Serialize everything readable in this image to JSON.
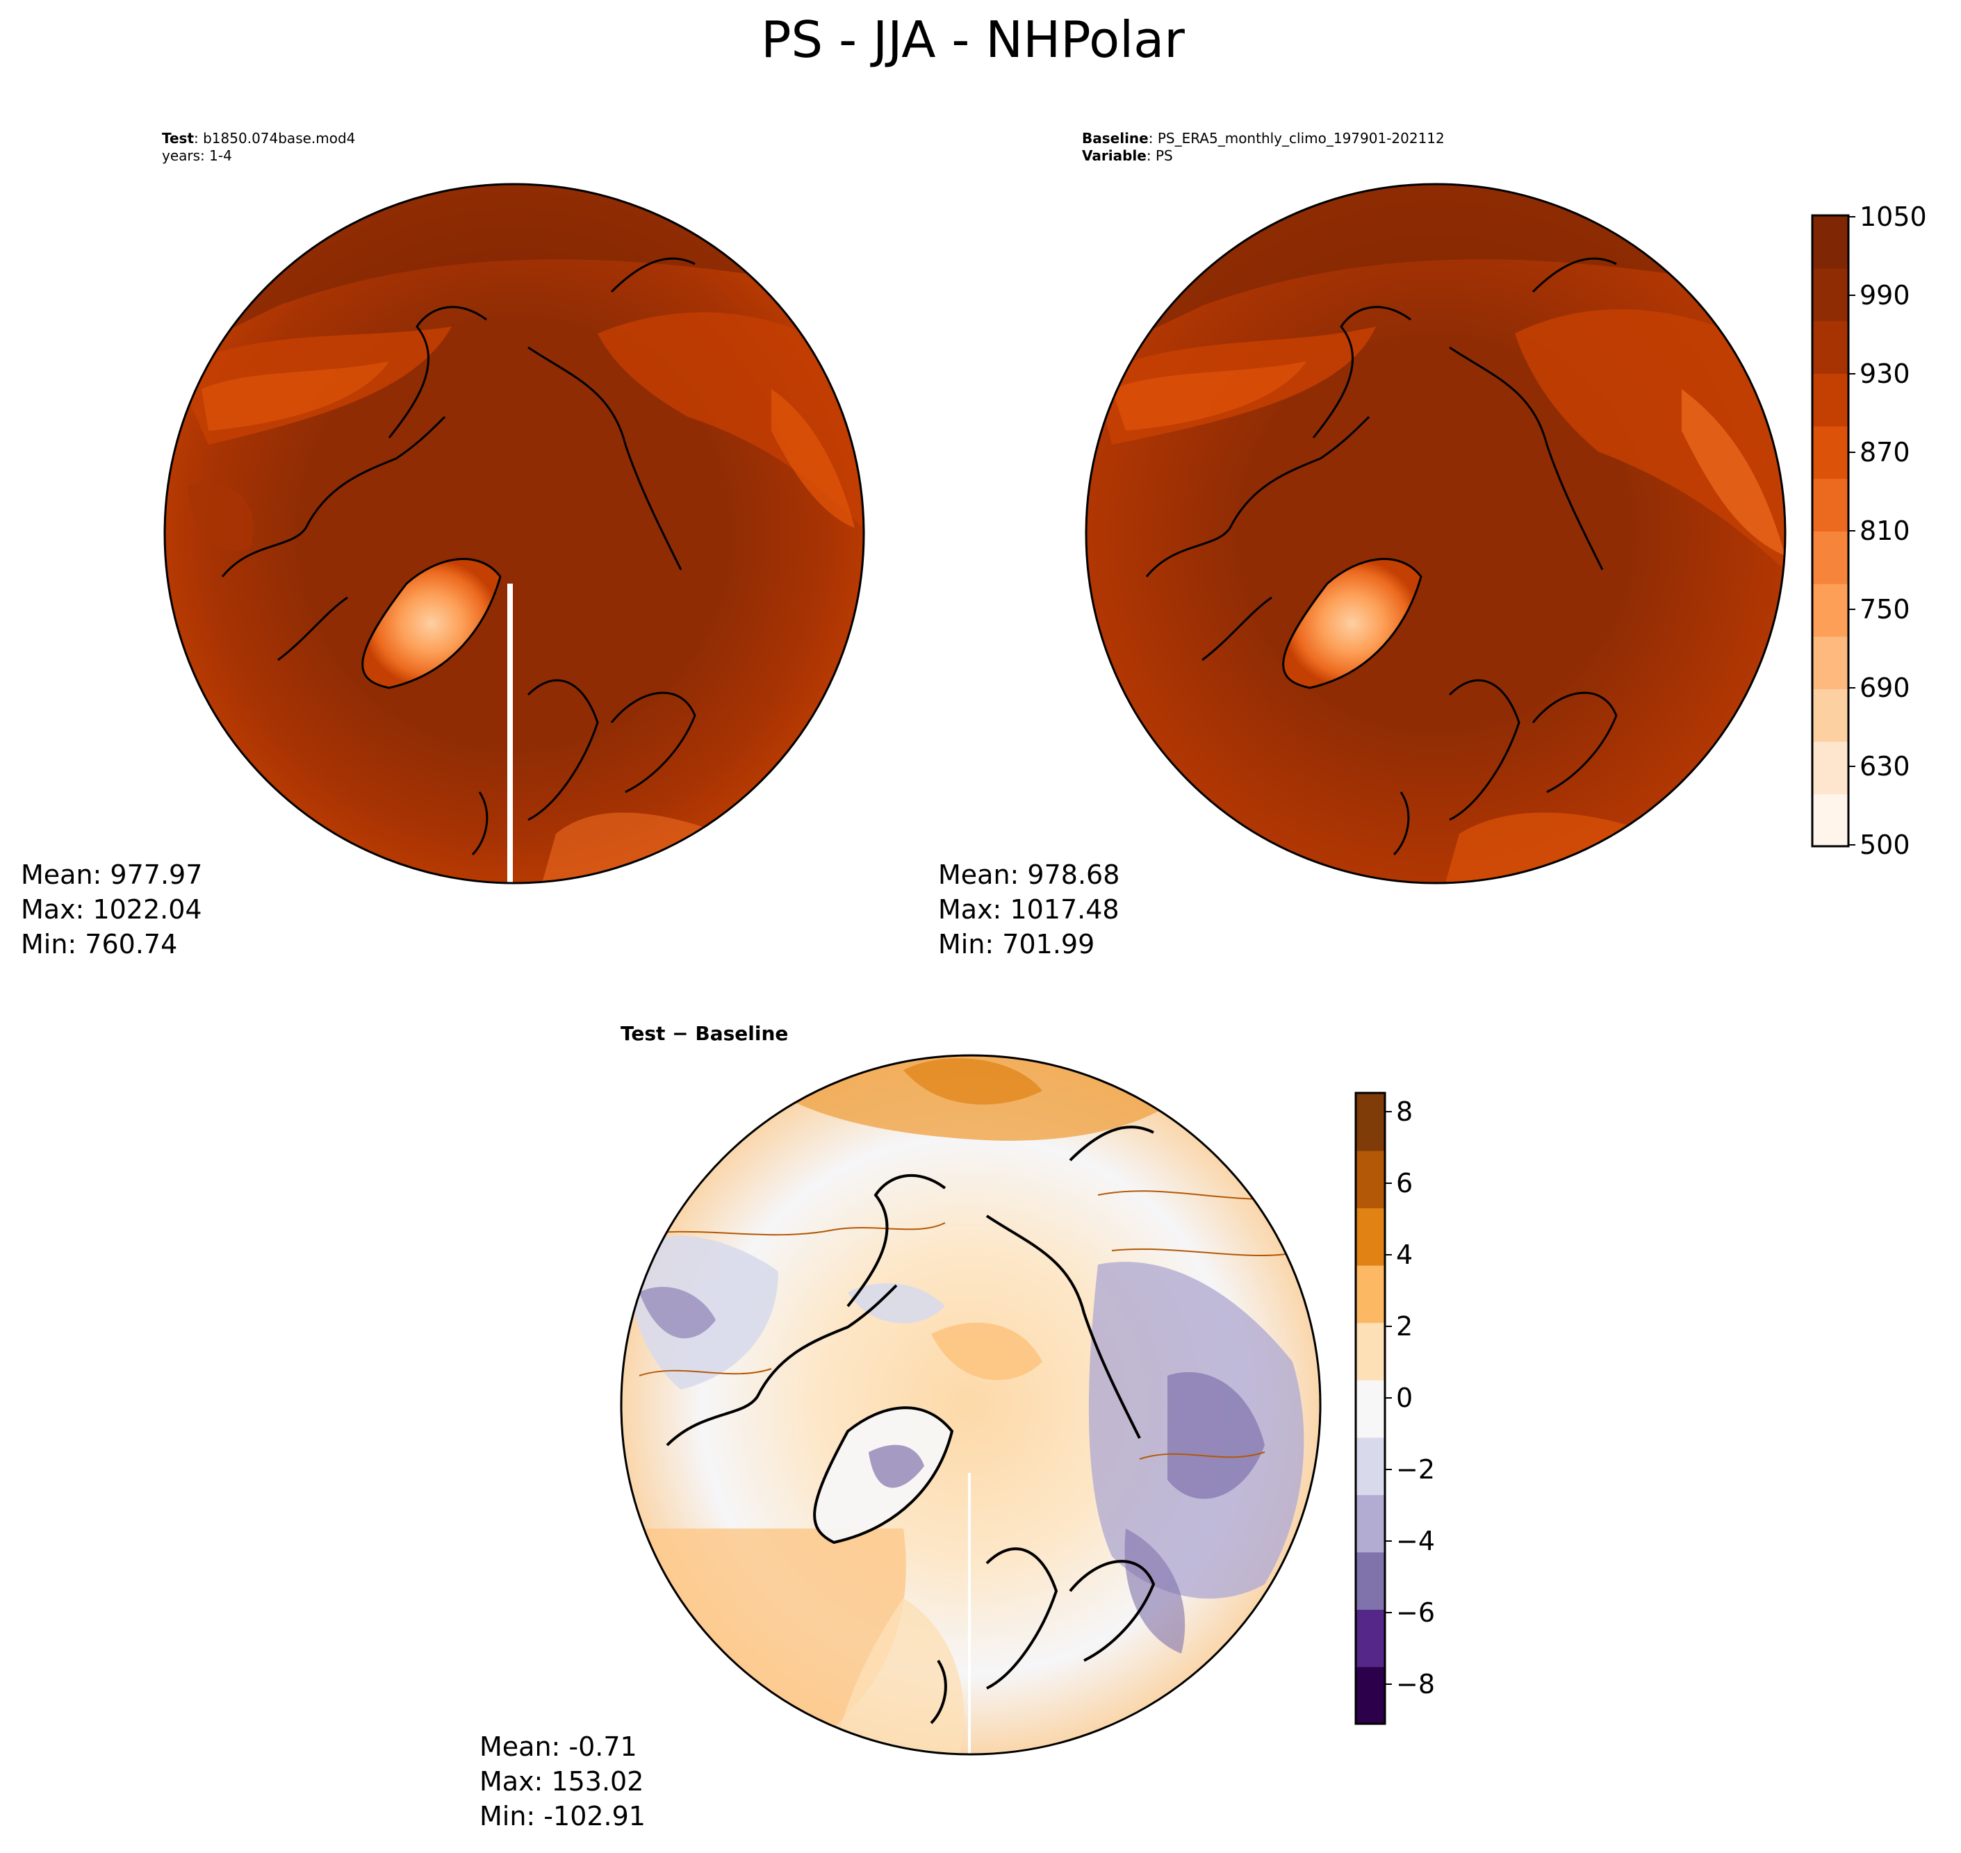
{
  "title": "PS - JJA - NHPolar",
  "test_panel": {
    "label_bold": "Test",
    "label_value": ": b1850.074base.mod4",
    "years": "years: 1-4",
    "stats": {
      "mean": "Mean: 977.97",
      "max": "Max: 1022.04",
      "min": "Min: 760.74"
    }
  },
  "baseline_panel": {
    "label_bold": "Baseline",
    "label_value": ": PS_ERA5_monthly_climo_197901-202112",
    "variable_bold": "Variable",
    "variable_value": ": PS",
    "stats": {
      "mean": "Mean: 978.68",
      "max": "Max: 1017.48",
      "min": "Min: 701.99"
    }
  },
  "diff_panel": {
    "label": "Test − Baseline",
    "stats": {
      "mean": "Mean: -0.71",
      "max": "Max: 153.02",
      "min": "Min: -102.91"
    }
  },
  "colorbar_abs": {
    "ticks": [
      "1050",
      "990",
      "930",
      "870",
      "810",
      "750",
      "690",
      "630",
      "500"
    ],
    "colors": [
      "#fff5eb",
      "#fee6ce",
      "#fdd0a2",
      "#fdb97e",
      "#fd9f57",
      "#f7843b",
      "#ec6a1f",
      "#dd5209",
      "#c43f02",
      "#a73303",
      "#8f2c04",
      "#7f2704"
    ]
  },
  "colorbar_diff": {
    "ticks": [
      "8",
      "6",
      "4",
      "2",
      "0",
      "−2",
      "−4",
      "−6",
      "−8"
    ],
    "colors": [
      "#2d004b",
      "#542788",
      "#8073ac",
      "#b2abd2",
      "#d8daeb",
      "#f7f7f7",
      "#fee0b6",
      "#fdb863",
      "#e08214",
      "#b35806",
      "#7f3b08"
    ]
  }
}
